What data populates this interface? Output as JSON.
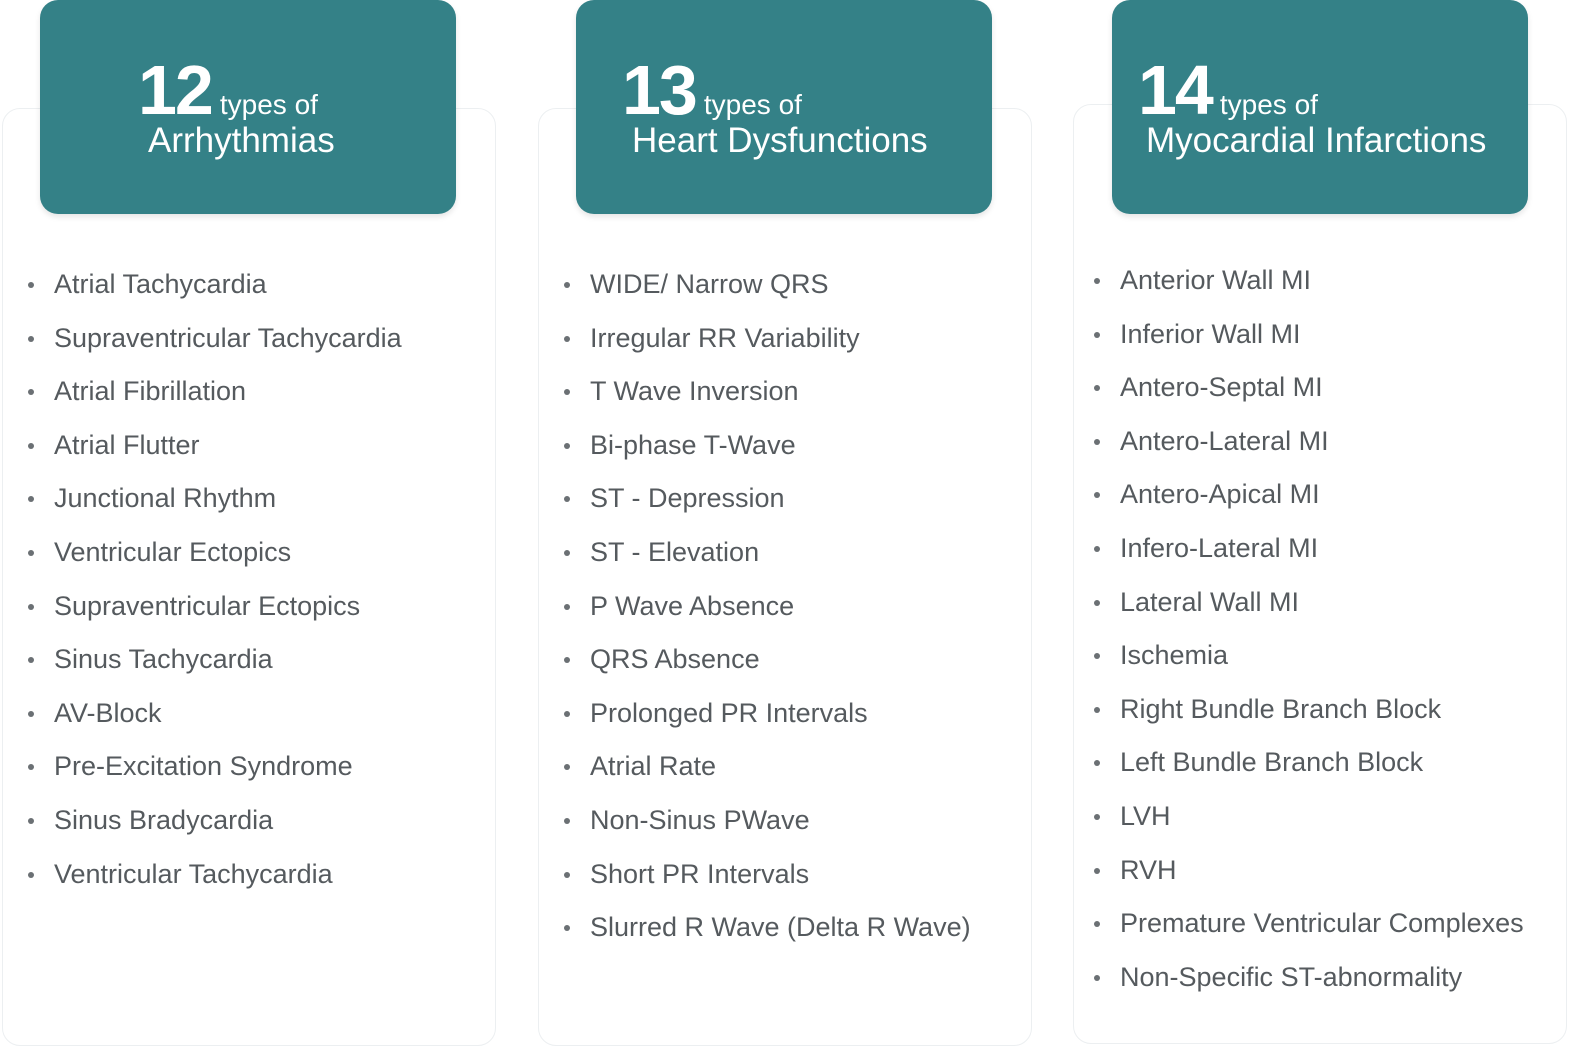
{
  "columns": [
    {
      "count": "12",
      "types_of": "types of",
      "title": "Arrhythmias",
      "items": [
        "Atrial Tachycardia",
        "Supraventricular Tachycardia",
        "Atrial Fibrillation",
        "Atrial Flutter",
        "Junctional Rhythm",
        "Ventricular Ectopics",
        "Supraventricular Ectopics",
        "Sinus Tachycardia",
        "AV-Block",
        "Pre-Excitation Syndrome",
        "Sinus Bradycardia",
        "Ventricular Tachycardia"
      ]
    },
    {
      "count": "13",
      "types_of": "types of",
      "title": "Heart Dysfunctions",
      "items": [
        "WIDE/ Narrow QRS",
        "Irregular RR Variability",
        "T Wave Inversion",
        "Bi-phase T-Wave",
        "ST - Depression",
        "ST - Elevation",
        "P Wave Absence",
        "QRS Absence",
        "Prolonged PR Intervals",
        "Atrial Rate",
        "Non-Sinus PWave",
        "Short PR Intervals",
        "Slurred R Wave (Delta R Wave)"
      ]
    },
    {
      "count": "14",
      "types_of": "types of",
      "title": "Myocardial Infarctions",
      "items": [
        "Anterior Wall MI",
        "Inferior Wall MI",
        "Antero-Septal MI",
        "Antero-Lateral MI",
        "Antero-Apical MI",
        "Infero-Lateral MI",
        "Lateral Wall MI",
        "Ischemia",
        "Right Bundle Branch Block",
        "Left Bundle Branch Block",
        "LVH",
        "RVH",
        "Premature Ventricular Complexes",
        "Non-Specific ST-abnormality"
      ]
    }
  ],
  "colors": {
    "header_bg": "#348187",
    "header_text": "#ffffff",
    "list_text": "#555a5e"
  }
}
